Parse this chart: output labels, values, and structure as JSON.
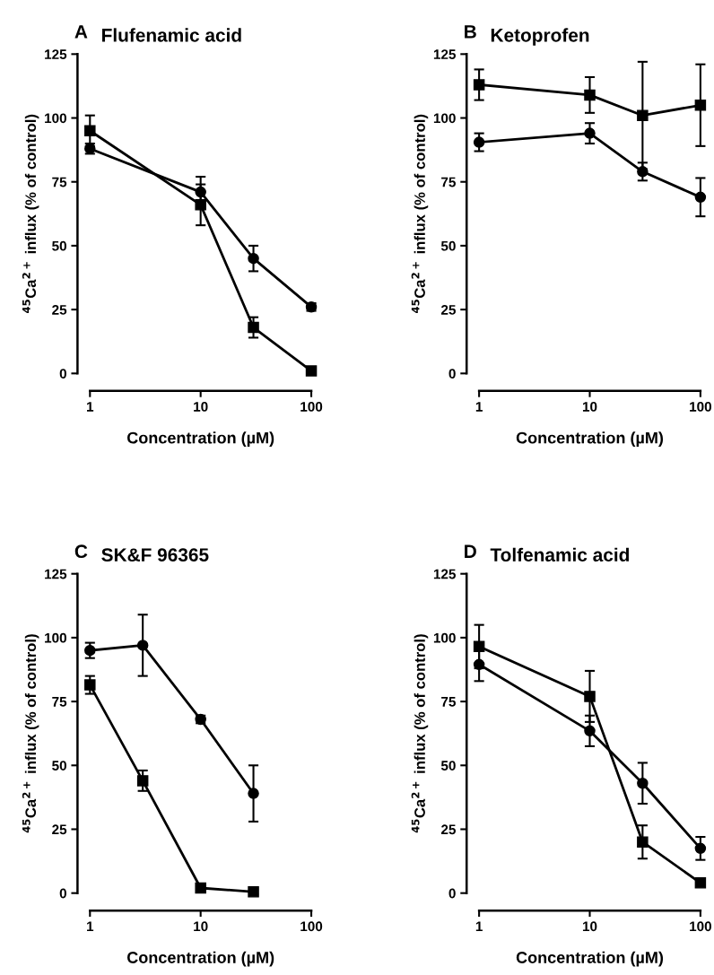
{
  "chart_data": [
    {
      "type": "line",
      "title": "Flufenamic acid",
      "annotations": [
        "A"
      ],
      "xlabel": "Concentration (µM)",
      "ylabel": "$^{45}$Ca$^{2+}$ influx (% of control)",
      "log": "x",
      "xlim": [
        1,
        100
      ],
      "xticks": [
        1,
        10,
        100
      ],
      "ylim": [
        0,
        125
      ],
      "yticks": [
        0,
        25,
        50,
        75,
        100,
        125
      ],
      "grid": false,
      "line_style": "solid",
      "series": [
        {
          "color": "#000000",
          "marker": "circle",
          "x": [
            1,
            10,
            30,
            100
          ],
          "values": [
            88,
            71,
            45,
            26
          ],
          "errors": [
            2,
            6,
            5,
            1.5
          ]
        },
        {
          "color": "#000000",
          "marker": "square",
          "x": [
            1,
            10,
            30,
            100
          ],
          "values": [
            95,
            66,
            18,
            1
          ],
          "errors": [
            6,
            8,
            4,
            1
          ]
        }
      ]
    },
    {
      "type": "line",
      "title": "Ketoprofen",
      "annotations": [
        "B"
      ],
      "xlabel": "Concentration (µM)",
      "ylabel": "$^{45}$Ca$^{2+}$ influx (% of control)",
      "log": "x",
      "xlim": [
        1,
        100
      ],
      "xticks": [
        1,
        10,
        100
      ],
      "ylim": [
        0,
        125
      ],
      "yticks": [
        0,
        25,
        50,
        75,
        100,
        125
      ],
      "grid": false,
      "line_style": "solid",
      "series": [
        {
          "color": "#000000",
          "marker": "square",
          "x": [
            1,
            10,
            30,
            100
          ],
          "values": [
            113,
            109,
            101,
            105
          ],
          "errors": [
            6,
            7,
            21,
            16
          ]
        },
        {
          "color": "#000000",
          "marker": "circle",
          "x": [
            1,
            10,
            30,
            100
          ],
          "values": [
            90.5,
            94,
            79,
            69
          ],
          "errors": [
            3.5,
            4,
            3.5,
            7.5
          ]
        }
      ]
    },
    {
      "type": "line",
      "title": "SK&F 96365",
      "annotations": [
        "C"
      ],
      "xlabel": "Concentration (µM)",
      "ylabel": "$^{45}$Ca$^{2+}$ influx (% of control)",
      "log": "x",
      "xlim": [
        1,
        100
      ],
      "xticks": [
        1,
        10,
        100
      ],
      "ylim": [
        0,
        125
      ],
      "yticks": [
        0,
        25,
        50,
        75,
        100,
        125
      ],
      "grid": false,
      "line_style": "solid",
      "series": [
        {
          "color": "#000000",
          "marker": "circle",
          "x": [
            1,
            3,
            10,
            30
          ],
          "values": [
            95,
            97,
            68,
            39
          ],
          "errors": [
            3,
            12,
            1.5,
            11
          ]
        },
        {
          "color": "#000000",
          "marker": "square",
          "x": [
            1,
            3,
            10,
            30
          ],
          "values": [
            81.5,
            44,
            2,
            0.5
          ],
          "errors": [
            3.5,
            4,
            1,
            1
          ]
        }
      ]
    },
    {
      "type": "line",
      "title": "Tolfenamic acid",
      "annotations": [
        "D"
      ],
      "xlabel": "Concentration (µM)",
      "ylabel": "$^{45}$Ca$^{2+}$ influx (% of control)",
      "log": "x",
      "xlim": [
        1,
        100
      ],
      "xticks": [
        1,
        10,
        100
      ],
      "ylim": [
        0,
        125
      ],
      "yticks": [
        0,
        25,
        50,
        75,
        100,
        125
      ],
      "grid": false,
      "line_style": "solid",
      "series": [
        {
          "color": "#000000",
          "marker": "square",
          "x": [
            1,
            10,
            30,
            100
          ],
          "values": [
            96.5,
            77,
            20,
            4
          ],
          "errors": [
            8.5,
            10,
            6.5,
            1
          ]
        },
        {
          "color": "#000000",
          "marker": "circle",
          "x": [
            1,
            10,
            30,
            100
          ],
          "values": [
            89.5,
            63.5,
            43,
            17.5
          ],
          "errors": [
            6.5,
            6,
            8,
            4.5
          ]
        }
      ]
    }
  ]
}
